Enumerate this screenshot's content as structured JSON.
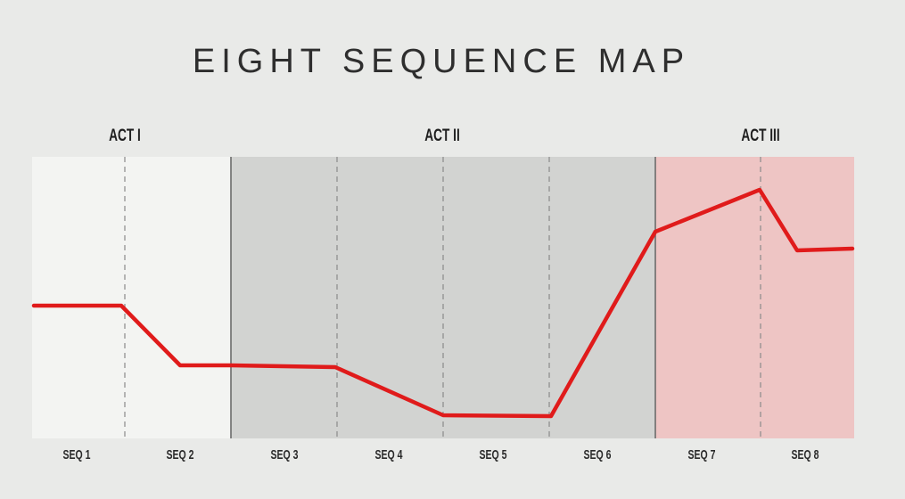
{
  "title": "EIGHT SEQUENCE MAP",
  "acts": [
    {
      "label": "ACT I",
      "color": "#f3f4f2"
    },
    {
      "label": "ACT II",
      "color": "#d2d3d1"
    },
    {
      "label": "ACT III",
      "color": "#eec5c4"
    }
  ],
  "sequences": [
    "SEQ 1",
    "SEQ 2",
    "SEQ 3",
    "SEQ 4",
    "SEQ 5",
    "SEQ 6",
    "SEQ 7",
    "SEQ 8"
  ],
  "colors": {
    "line": "#e01b1b",
    "act_border": "#6b6b6b",
    "seq_divider": "#8a8a8a"
  }
}
